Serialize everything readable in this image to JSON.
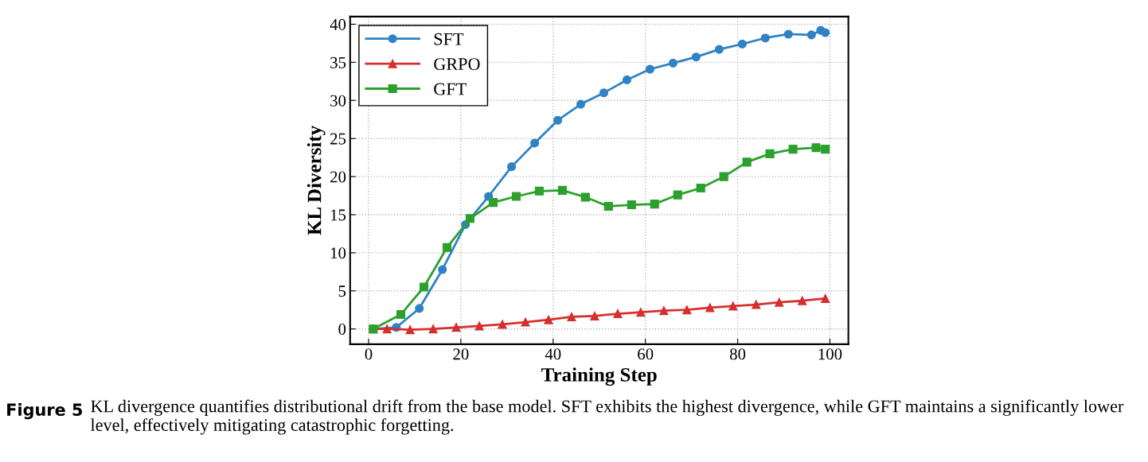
{
  "chart_data": {
    "type": "line",
    "xlabel": "Training Step",
    "ylabel": "KL Diversity",
    "xlim": [
      -4,
      104
    ],
    "xticks": [
      0,
      20,
      40,
      60,
      80,
      100
    ],
    "ylim": [
      -2,
      41
    ],
    "yticks": [
      0,
      5,
      10,
      15,
      20,
      25,
      30,
      35,
      40
    ],
    "grid": true,
    "legend": "top left",
    "line_style": "solid",
    "series": [
      {
        "name": "SFT",
        "color": "#2f83c4",
        "marker": "circle",
        "x": [
          1,
          6,
          11,
          16,
          21,
          26,
          31,
          36,
          41,
          46,
          51,
          56,
          61,
          66,
          71,
          76,
          81,
          86,
          91,
          96,
          98,
          99
        ],
        "values": [
          0,
          0.2,
          2.7,
          7.8,
          13.7,
          17.4,
          21.3,
          24.4,
          27.4,
          29.5,
          31.0,
          32.7,
          34.1,
          34.9,
          35.7,
          36.7,
          37.4,
          38.2,
          38.7,
          38.6,
          39.2,
          38.9
        ]
      },
      {
        "name": "GRPO",
        "color": "#d62f2f",
        "marker": "triangle",
        "x": [
          1,
          4,
          9,
          14,
          19,
          24,
          29,
          34,
          39,
          44,
          49,
          54,
          59,
          64,
          69,
          74,
          79,
          84,
          89,
          94,
          99
        ],
        "values": [
          0,
          0,
          -0.1,
          0,
          0.2,
          0.4,
          0.6,
          0.9,
          1.2,
          1.6,
          1.7,
          2.0,
          2.2,
          2.4,
          2.5,
          2.8,
          3.0,
          3.2,
          3.5,
          3.7,
          4.0
        ]
      },
      {
        "name": "GFT",
        "color": "#2ca02c",
        "marker": "square",
        "x": [
          1,
          7,
          12,
          17,
          22,
          27,
          32,
          37,
          42,
          47,
          52,
          57,
          62,
          67,
          72,
          77,
          82,
          87,
          92,
          97,
          99
        ],
        "values": [
          0,
          1.9,
          5.5,
          10.7,
          14.5,
          16.6,
          17.4,
          18.1,
          18.2,
          17.3,
          16.1,
          16.3,
          16.4,
          17.6,
          18.5,
          20.0,
          21.9,
          23.0,
          23.6,
          23.8,
          23.6
        ]
      }
    ],
    "annotations": [
      "Figure 5",
      "KL divergence quantifies distributional drift from the base model. SFT exhibits the highest divergence, while GFT maintains a significantly lower level, effectively mitigating catastrophic forgetting."
    ]
  }
}
